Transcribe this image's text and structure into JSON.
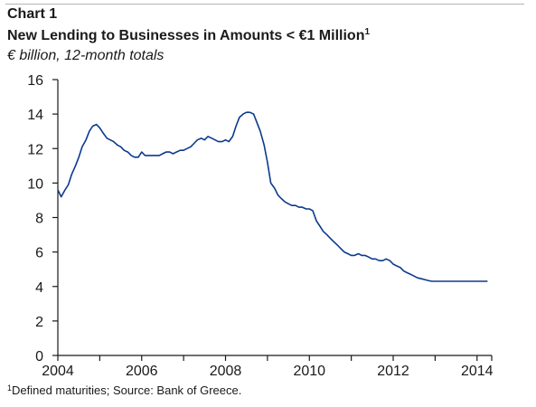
{
  "header": {
    "label": "Chart 1",
    "title": "New Lending to Businesses in Amounts < €1 Million",
    "title_superscript": "1",
    "subtitle": "€ billion, 12-month totals"
  },
  "footnote": {
    "marker": "1",
    "text": "Defined maturities; Source: Bank of Greece."
  },
  "colors": {
    "line": "#0b3a8c",
    "axis": "#1a1a1a",
    "rule": "#b5b5b5"
  },
  "chart_data": {
    "type": "line",
    "title": "New Lending to Businesses in Amounts < €1 Million",
    "subtitle": "€ billion, 12-month totals",
    "xlabel": "",
    "ylabel": "",
    "xlim": [
      2004.0,
      2014.35
    ],
    "ylim": [
      0,
      16
    ],
    "x_ticks": [
      2004,
      2006,
      2008,
      2010,
      2012,
      2014
    ],
    "y_ticks": [
      0,
      2,
      4,
      6,
      8,
      10,
      12,
      14,
      16
    ],
    "grid": false,
    "series": [
      {
        "x": [
          2004.0,
          2004.08,
          2004.17,
          2004.25,
          2004.33,
          2004.42,
          2004.5,
          2004.58,
          2004.67,
          2004.75,
          2004.83,
          2004.92,
          2005.0,
          2005.08,
          2005.17,
          2005.25,
          2005.33,
          2005.42,
          2005.5,
          2005.58,
          2005.67,
          2005.75,
          2005.83,
          2005.92,
          2006.0,
          2006.08,
          2006.17,
          2006.25,
          2006.33,
          2006.42,
          2006.5,
          2006.58,
          2006.67,
          2006.75,
          2006.83,
          2006.92,
          2007.0,
          2007.08,
          2007.17,
          2007.25,
          2007.33,
          2007.42,
          2007.5,
          2007.58,
          2007.67,
          2007.75,
          2007.83,
          2007.92,
          2008.0,
          2008.08,
          2008.17,
          2008.25,
          2008.33,
          2008.42,
          2008.5,
          2008.58,
          2008.67,
          2008.75,
          2008.83,
          2008.92,
          2009.0,
          2009.08,
          2009.17,
          2009.25,
          2009.33,
          2009.42,
          2009.5,
          2009.58,
          2009.67,
          2009.75,
          2009.83,
          2009.92,
          2010.0,
          2010.08,
          2010.17,
          2010.25,
          2010.33,
          2010.42,
          2010.5,
          2010.58,
          2010.67,
          2010.75,
          2010.83,
          2010.92,
          2011.0,
          2011.08,
          2011.17,
          2011.25,
          2011.33,
          2011.42,
          2011.5,
          2011.58,
          2011.67,
          2011.75,
          2011.83,
          2011.92,
          2012.0,
          2012.08,
          2012.17,
          2012.25,
          2012.33,
          2012.42,
          2012.5,
          2012.58,
          2012.67,
          2012.75,
          2012.83,
          2012.92,
          2013.0,
          2013.08,
          2013.17,
          2013.25,
          2013.33,
          2013.42,
          2013.5,
          2013.58,
          2013.67,
          2013.75,
          2013.83,
          2013.92,
          2014.0,
          2014.08,
          2014.17,
          2014.25
        ],
        "values": [
          9.6,
          9.2,
          9.6,
          9.9,
          10.5,
          11.0,
          11.5,
          12.1,
          12.5,
          13.0,
          13.3,
          13.4,
          13.2,
          12.9,
          12.6,
          12.5,
          12.4,
          12.2,
          12.1,
          11.9,
          11.8,
          11.6,
          11.5,
          11.5,
          11.8,
          11.6,
          11.6,
          11.6,
          11.6,
          11.6,
          11.7,
          11.8,
          11.8,
          11.7,
          11.8,
          11.9,
          11.9,
          12.0,
          12.1,
          12.3,
          12.5,
          12.6,
          12.5,
          12.7,
          12.6,
          12.5,
          12.4,
          12.4,
          12.5,
          12.4,
          12.7,
          13.3,
          13.8,
          14.0,
          14.1,
          14.1,
          14.0,
          13.5,
          13.0,
          12.2,
          11.2,
          10.0,
          9.7,
          9.3,
          9.1,
          8.9,
          8.8,
          8.7,
          8.7,
          8.6,
          8.6,
          8.5,
          8.5,
          8.4,
          7.8,
          7.5,
          7.2,
          7.0,
          6.8,
          6.6,
          6.4,
          6.2,
          6.0,
          5.9,
          5.8,
          5.8,
          5.9,
          5.8,
          5.8,
          5.7,
          5.6,
          5.6,
          5.5,
          5.5,
          5.6,
          5.5,
          5.3,
          5.2,
          5.1,
          4.9,
          4.8,
          4.7,
          4.6,
          4.5,
          4.45,
          4.4,
          4.35,
          4.3,
          4.3,
          4.3,
          4.3,
          4.3,
          4.3,
          4.3,
          4.3,
          4.3,
          4.3,
          4.3,
          4.3,
          4.3,
          4.3,
          4.3,
          4.3,
          4.3
        ]
      }
    ]
  }
}
